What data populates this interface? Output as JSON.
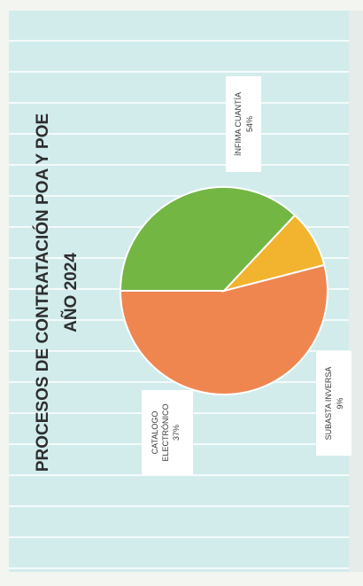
{
  "chart_data": {
    "type": "pie",
    "title_line1": "PROCESOS DE CONTRATACIÓN POA Y POE",
    "title_line2": "AÑO 2024",
    "slices": [
      {
        "label": "ÍNFIMA CUANTÍA",
        "pct_label": "54%",
        "value": 54,
        "color": "#ef8650"
      },
      {
        "label": "SUBASTA INVERSA",
        "pct_label": "9%",
        "value": 9,
        "color": "#f2b32e"
      },
      {
        "label_lines": [
          "CATALOGO",
          "ELECTRÓNICO"
        ],
        "label": "CATALOGO ELECTRÓNICO",
        "pct_label": "37%",
        "value": 37,
        "color": "#73b644"
      }
    ],
    "legend": "none",
    "data_labels": "callout boxes with category name and percentage",
    "orientation": "page rotated 90° counter-clockwise"
  },
  "colors": {
    "background": "#d2ecec",
    "title_text": "#2e2e2e",
    "label_text": "#3a3a3a"
  }
}
